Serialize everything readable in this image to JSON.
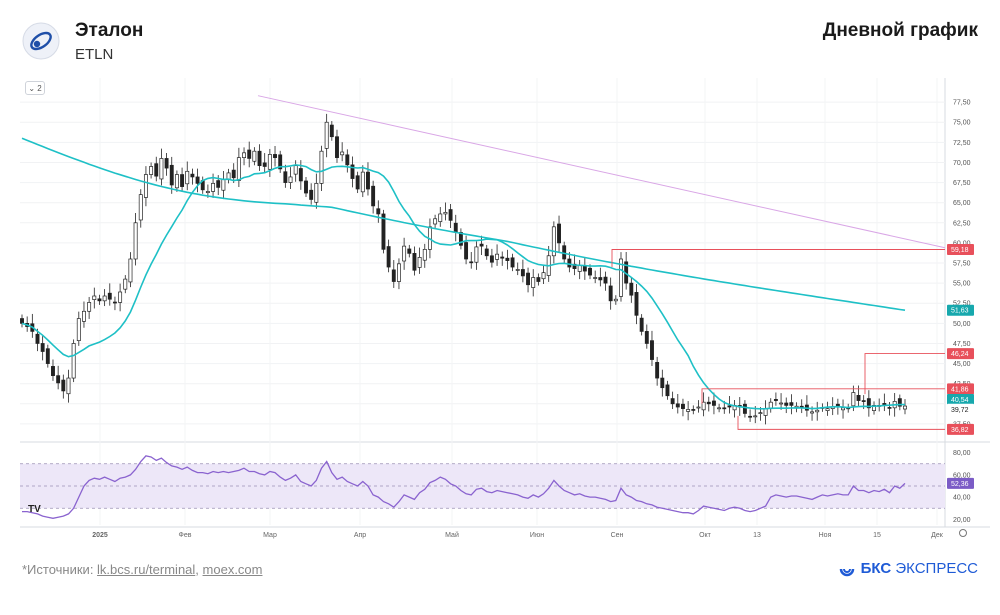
{
  "header": {
    "name": "Эталон",
    "ticker": "ETLN",
    "chart_title": "Дневной график"
  },
  "footer": {
    "sources_prefix": "*Источники: ",
    "source_1": "lk.bcs.ru/terminal",
    "source_sep": ", ",
    "source_2": "moex.com",
    "brand_bold": "БКС",
    "brand_rest": " ЭКСПРЕСС"
  },
  "toolbar": {
    "interval_label": "⌄ 2",
    "tv_logo": "TV"
  },
  "colors": {
    "up": "#ffffff",
    "down": "#222222",
    "ma_short": "#1ec0c6",
    "ma_long": "#1ec0c6",
    "trend": "#d9a6e6",
    "level": "#e8505b",
    "rsi_line": "#8a63cf",
    "rsi_band": "#ede7f8"
  },
  "chart_data": [
    {
      "type": "candlestick",
      "title": "",
      "xlabel": "",
      "ylabel": "",
      "x_tick_labels": [
        "2025",
        "Фев",
        "Мар",
        "Апр",
        "Май",
        "Июн",
        "Сен",
        "Окт",
        "13",
        "Ноя",
        "15",
        "Дек"
      ],
      "y_tick_labels": [
        "77,50",
        "75,00",
        "72,50",
        "70,00",
        "67,50",
        "65,00",
        "62,50",
        "60,00",
        "57,50",
        "55,00",
        "52,50",
        "50,00",
        "47,50",
        "45,00",
        "42,50",
        "40,00",
        "37,50"
      ],
      "ylim": [
        35.5,
        80.5
      ],
      "grid": true,
      "price_closes": [
        50.0,
        49.6,
        49.0,
        47.5,
        46.5,
        45.0,
        43.5,
        42.6,
        41.6,
        43.2,
        47.5,
        50.6,
        51.5,
        52.6,
        53.4,
        52.8,
        53.4,
        53.0,
        52.6,
        53.9,
        55.5,
        58.0,
        62.5,
        66.0,
        68.5,
        69.5,
        68.3,
        70.5,
        69.3,
        67.2,
        68.5,
        67.0,
        68.9,
        68.2,
        67.4,
        66.6,
        66.4,
        67.4,
        66.9,
        67.9,
        68.7,
        68.1,
        70.6,
        71.2,
        70.5,
        71.4,
        69.6,
        69.5,
        71.0,
        70.6,
        69.2,
        67.5,
        68.2,
        69.6,
        67.7,
        66.2,
        65.4,
        67.4,
        71.4,
        75.0,
        73.2,
        70.6,
        71.3,
        69.7,
        68.0,
        66.7,
        68.8,
        66.7,
        64.6,
        63.6,
        59.2,
        57.0,
        55.2,
        57.4,
        59.6,
        58.7,
        56.6,
        58.2,
        59.2,
        62.0,
        63.0,
        63.6,
        63.8,
        62.8,
        61.3,
        59.7,
        58.0,
        57.6,
        59.5,
        59.6,
        58.4,
        57.6,
        58.6,
        58.1,
        57.8,
        57.0,
        56.7,
        55.9,
        54.8,
        55.7,
        55.2,
        56.3,
        58.4,
        62.0,
        60.0,
        58.0,
        57.0,
        56.8,
        57.2,
        56.5,
        56.0,
        55.7,
        55.4,
        55.0,
        52.8,
        53.0,
        58.0,
        55.0,
        53.5,
        51.0,
        49.0,
        47.5,
        45.5,
        43.2,
        42.0,
        41.0,
        40.0,
        39.6,
        39.4,
        39.3,
        39.2,
        39.6,
        40.2,
        40.0,
        39.8,
        39.5,
        39.4,
        39.6,
        39.8,
        39.6,
        38.8,
        38.4,
        38.5,
        38.9,
        39.4,
        40.2,
        40.4,
        40.1,
        39.8,
        39.8,
        39.7,
        39.5,
        39.2,
        39.0,
        39.2,
        39.5,
        39.4,
        39.6,
        39.6,
        39.5,
        39.4,
        41.4,
        40.4,
        40.3,
        39.5,
        39.8,
        39.7,
        39.9,
        39.5,
        40.3,
        39.7,
        39.72
      ],
      "levels": [
        "59,18",
        "46,24",
        "41,86",
        "36,82"
      ],
      "ma_labels": [
        "51,63",
        "40,54"
      ],
      "last_price": "39,72",
      "rsi": {
        "ylim": [
          15,
          85
        ],
        "y_tick_labels": [
          "80,00",
          "60,00",
          "40,00",
          "20,00"
        ],
        "band": [
          30,
          70
        ],
        "mid": 50,
        "last": "52,36",
        "values": [
          27,
          27,
          26,
          25,
          23,
          22,
          21,
          22,
          23,
          25,
          30,
          40,
          50,
          55,
          57,
          56,
          58,
          56,
          54,
          57,
          58,
          60,
          65,
          72,
          77,
          76,
          73,
          75,
          71,
          68,
          67,
          65,
          67,
          64,
          62,
          62,
          61,
          63,
          62,
          63,
          62,
          63,
          64,
          66,
          63,
          63,
          61,
          60,
          63,
          62,
          58,
          55,
          57,
          60,
          54,
          52,
          50,
          55,
          66,
          72,
          62,
          56,
          58,
          54,
          52,
          50,
          54,
          50,
          42,
          40,
          36,
          34,
          31,
          36,
          42,
          40,
          38,
          44,
          47,
          53,
          55,
          58,
          56,
          52,
          50,
          46,
          43,
          42,
          47,
          48,
          45,
          44,
          46,
          45,
          44,
          43,
          42,
          40,
          39,
          42,
          40,
          43,
          48,
          55,
          50,
          46,
          44,
          42,
          43,
          41,
          40,
          40,
          39,
          38,
          36,
          37,
          48,
          42,
          40,
          37,
          36,
          34,
          33,
          31,
          30,
          29,
          28,
          27,
          26,
          26,
          25,
          28,
          32,
          31,
          30,
          29,
          28,
          30,
          31,
          30,
          28,
          27,
          28,
          30,
          32,
          40,
          42,
          41,
          40,
          41,
          41,
          40,
          39,
          38,
          40,
          42,
          41,
          42,
          43,
          42,
          42,
          50,
          46,
          46,
          44,
          46,
          45,
          47,
          44,
          50,
          48,
          52.36
        ]
      }
    }
  ]
}
